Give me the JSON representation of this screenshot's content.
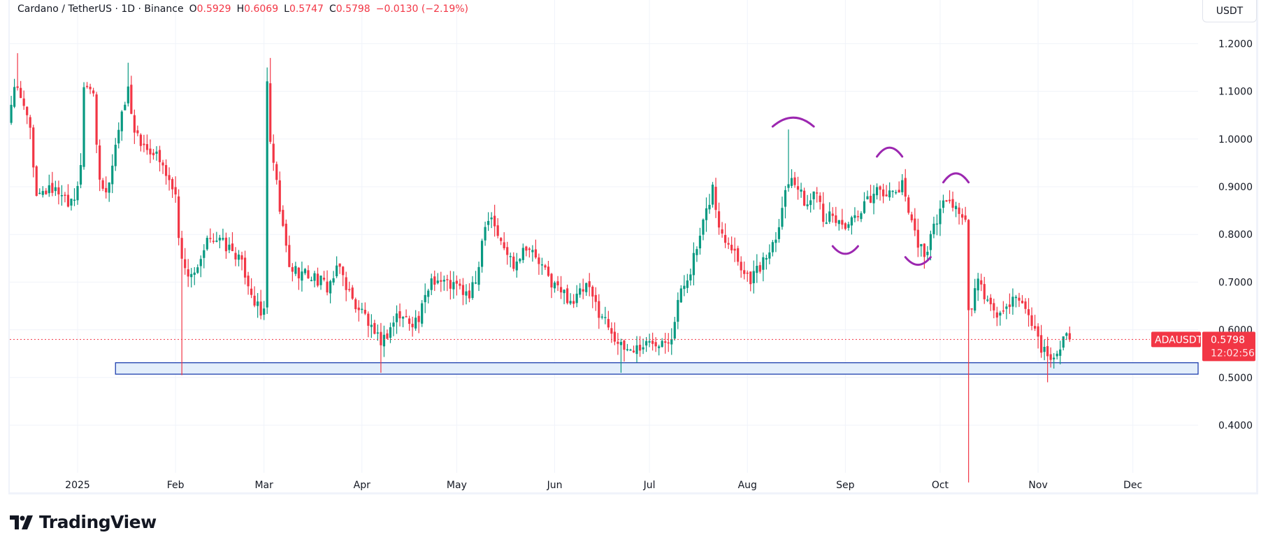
{
  "header": {
    "symbol": "Cardano / TetherUS · 1D · Binance",
    "o_label": "O",
    "o_value": "0.5929",
    "h_label": "H",
    "h_value": "0.6069",
    "l_label": "L",
    "l_value": "0.5747",
    "c_label": "C",
    "c_value": "0.5798",
    "change": "−0.0130 (−2.19%)"
  },
  "currency_button": "USDT",
  "price_badge": {
    "ticker": "ADAUSDT",
    "price": "0.5798",
    "countdown": "12:02:56"
  },
  "branding": "TradingView",
  "colors": {
    "up": "#089981",
    "down": "#f23645",
    "zone_border": "#1e3fae",
    "zone_fill": "#e3eefb",
    "annotation": "#9c27b0",
    "grid": "#f0f3fa"
  },
  "chart_data": {
    "type": "candlestick",
    "title": "Cardano / TetherUS · 1D · Binance",
    "x_unit": "days since 2025-01-01",
    "ylim": [
      0.27,
      1.23
    ],
    "y_ticks": [
      "1.2000",
      "1.1000",
      "1.0000",
      "0.9000",
      "0.8000",
      "0.7000",
      "0.6000",
      "0.5000",
      "0.4000"
    ],
    "y_tick_values": [
      1.2,
      1.1,
      1.0,
      0.9,
      0.8,
      0.7,
      0.6,
      0.5,
      0.4
    ],
    "x_ticks": [
      {
        "label": "2025",
        "day": 0
      },
      {
        "label": "Feb",
        "day": 31
      },
      {
        "label": "Mar",
        "day": 59
      },
      {
        "label": "Apr",
        "day": 90
      },
      {
        "label": "May",
        "day": 120
      },
      {
        "label": "Jun",
        "day": 151
      },
      {
        "label": "Jul",
        "day": 181
      },
      {
        "label": "Aug",
        "day": 212
      },
      {
        "label": "Sep",
        "day": 243
      },
      {
        "label": "Oct",
        "day": 273
      },
      {
        "label": "Nov",
        "day": 304
      },
      {
        "label": "Dec",
        "day": 334
      }
    ],
    "close_anchors": [
      [
        -21,
        1.06
      ],
      [
        -20,
        1.1
      ],
      [
        -17,
        1.08
      ],
      [
        -15,
        1.03
      ],
      [
        -13,
        0.88
      ],
      [
        -9,
        0.9
      ],
      [
        -5,
        0.87
      ],
      [
        -1,
        0.86
      ],
      [
        1,
        0.95
      ],
      [
        2,
        1.1
      ],
      [
        5,
        1.1
      ],
      [
        7,
        0.9
      ],
      [
        9,
        0.88
      ],
      [
        11,
        0.95
      ],
      [
        14,
        1.06
      ],
      [
        16,
        1.1
      ],
      [
        18,
        1.02
      ],
      [
        20,
        1.0
      ],
      [
        24,
        0.97
      ],
      [
        28,
        0.93
      ],
      [
        31,
        0.88
      ],
      [
        32,
        0.8
      ],
      [
        34,
        0.72
      ],
      [
        38,
        0.72
      ],
      [
        42,
        0.8
      ],
      [
        46,
        0.78
      ],
      [
        50,
        0.76
      ],
      [
        53,
        0.72
      ],
      [
        56,
        0.66
      ],
      [
        58,
        0.63
      ],
      [
        59,
        0.64
      ],
      [
        60,
        1.13
      ],
      [
        61,
        0.98
      ],
      [
        62,
        0.95
      ],
      [
        64,
        0.85
      ],
      [
        67,
        0.73
      ],
      [
        71,
        0.72
      ],
      [
        75,
        0.71
      ],
      [
        79,
        0.69
      ],
      [
        83,
        0.73
      ],
      [
        87,
        0.66
      ],
      [
        91,
        0.63
      ],
      [
        94,
        0.58
      ],
      [
        97,
        0.58
      ],
      [
        101,
        0.63
      ],
      [
        105,
        0.62
      ],
      [
        108,
        0.62
      ],
      [
        112,
        0.71
      ],
      [
        116,
        0.7
      ],
      [
        120,
        0.69
      ],
      [
        124,
        0.67
      ],
      [
        126,
        0.7
      ],
      [
        129,
        0.83
      ],
      [
        131,
        0.84
      ],
      [
        134,
        0.78
      ],
      [
        138,
        0.74
      ],
      [
        142,
        0.78
      ],
      [
        146,
        0.74
      ],
      [
        150,
        0.7
      ],
      [
        153,
        0.68
      ],
      [
        157,
        0.66
      ],
      [
        161,
        0.69
      ],
      [
        165,
        0.64
      ],
      [
        169,
        0.6
      ],
      [
        172,
        0.56
      ],
      [
        176,
        0.56
      ],
      [
        180,
        0.57
      ],
      [
        184,
        0.58
      ],
      [
        188,
        0.59
      ],
      [
        190,
        0.66
      ],
      [
        194,
        0.73
      ],
      [
        197,
        0.79
      ],
      [
        201,
        0.9
      ],
      [
        203,
        0.81
      ],
      [
        207,
        0.78
      ],
      [
        211,
        0.72
      ],
      [
        213,
        0.71
      ],
      [
        217,
        0.74
      ],
      [
        221,
        0.8
      ],
      [
        224,
        0.89
      ],
      [
        226,
        0.93
      ],
      [
        229,
        0.88
      ],
      [
        231,
        0.86
      ],
      [
        234,
        0.9
      ],
      [
        236,
        0.84
      ],
      [
        240,
        0.83
      ],
      [
        243,
        0.82
      ],
      [
        247,
        0.83
      ],
      [
        250,
        0.87
      ],
      [
        254,
        0.9
      ],
      [
        257,
        0.88
      ],
      [
        261,
        0.9
      ],
      [
        263,
        0.86
      ],
      [
        266,
        0.78
      ],
      [
        268,
        0.76
      ],
      [
        271,
        0.81
      ],
      [
        273,
        0.86
      ],
      [
        276,
        0.87
      ],
      [
        279,
        0.85
      ],
      [
        281,
        0.82
      ],
      [
        282,
        0.63
      ],
      [
        285,
        0.7
      ],
      [
        288,
        0.66
      ],
      [
        290,
        0.63
      ],
      [
        294,
        0.64
      ],
      [
        298,
        0.67
      ],
      [
        300,
        0.64
      ],
      [
        303,
        0.6
      ],
      [
        306,
        0.55
      ],
      [
        308,
        0.53
      ],
      [
        311,
        0.57
      ],
      [
        313,
        0.5929
      ]
    ],
    "wick_extremes": [
      {
        "day": -19,
        "high": 1.18
      },
      {
        "day": 16,
        "high": 1.16
      },
      {
        "day": 33,
        "low": 0.505
      },
      {
        "day": 60,
        "high": 1.15
      },
      {
        "day": 61,
        "high": 1.17
      },
      {
        "day": 96,
        "low": 0.51
      },
      {
        "day": 172,
        "low": 0.51
      },
      {
        "day": 225,
        "high": 1.02
      },
      {
        "day": 282,
        "low": 0.28
      },
      {
        "day": 307,
        "low": 0.49
      }
    ],
    "last_candle": {
      "day": 314,
      "open": 0.5929,
      "high": 0.6069,
      "low": 0.5747,
      "close": 0.5798
    },
    "support_zone": {
      "from_day": 12,
      "top": 0.531,
      "bottom": 0.507
    },
    "current_price": 0.5798,
    "annotations": [
      {
        "kind": "arc-top",
        "day_from": 220,
        "day_to": 233,
        "price": 1.035
      },
      {
        "kind": "arc-top",
        "day_from": 253,
        "day_to": 261,
        "price": 0.972
      },
      {
        "kind": "arc-top",
        "day_from": 274,
        "day_to": 282,
        "price": 0.918
      },
      {
        "kind": "arc-bottom",
        "day_from": 239,
        "day_to": 247,
        "price": 0.768
      },
      {
        "kind": "arc-bottom",
        "day_from": 262,
        "day_to": 270,
        "price": 0.745
      }
    ]
  }
}
